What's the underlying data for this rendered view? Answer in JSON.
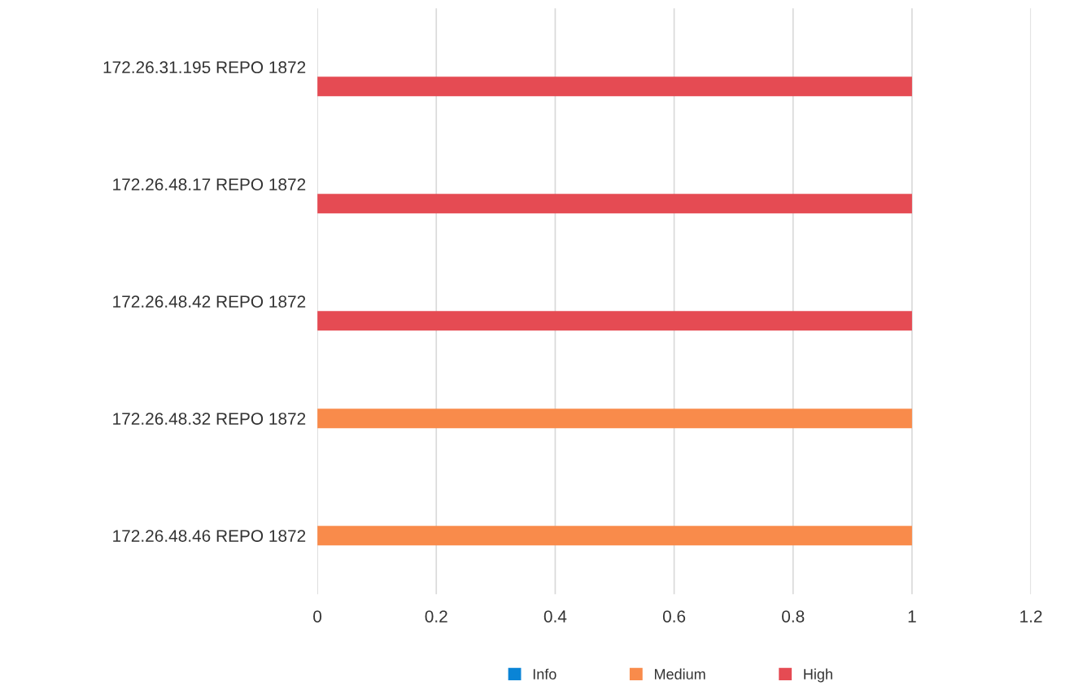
{
  "chart_data": {
    "type": "bar",
    "orientation": "horizontal",
    "categories": [
      "172.26.31.195 REPO 1872",
      "172.26.48.17 REPO 1872",
      "172.26.48.42 REPO 1872",
      "172.26.48.32 REPO 1872",
      "172.26.48.46 REPO 1872"
    ],
    "series": [
      {
        "name": "Info",
        "color": "#0a84d6",
        "values": [
          0,
          0,
          0,
          0,
          0
        ]
      },
      {
        "name": "Medium",
        "color": "#f98b4b",
        "values": [
          0,
          0,
          0,
          1,
          1
        ]
      },
      {
        "name": "High",
        "color": "#e54b53",
        "values": [
          1,
          1,
          1,
          0,
          0
        ]
      }
    ],
    "xlim": [
      0,
      1.2
    ],
    "xticks": [
      0,
      0.2,
      0.4,
      0.6,
      0.8,
      1,
      1.2
    ],
    "grid": "x",
    "legend": "bottom"
  }
}
